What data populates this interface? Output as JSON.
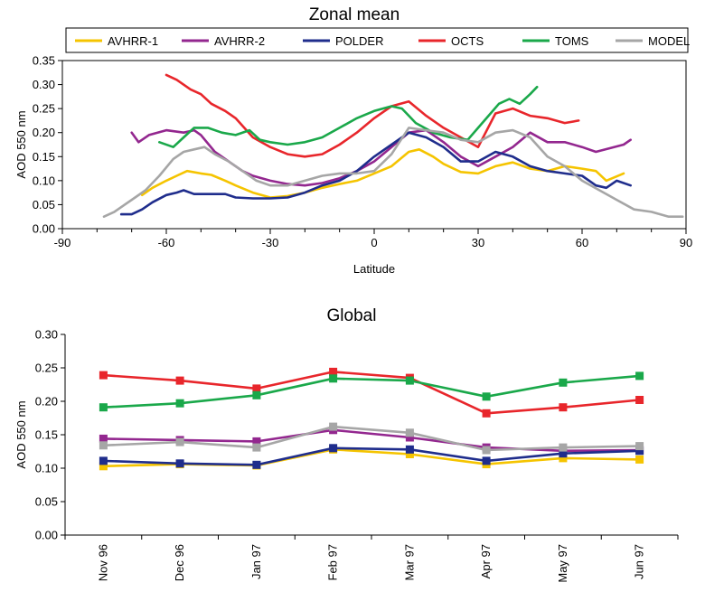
{
  "chart_data": [
    {
      "type": "line",
      "title": "Zonal mean",
      "xlabel": "Latitude",
      "ylabel": "AOD 550 nm",
      "xlim": [
        -90,
        90
      ],
      "ylim": [
        0,
        0.35
      ],
      "xticks": [
        "-90",
        "-60",
        "-30",
        "0",
        "30",
        "60",
        "90"
      ],
      "yticks": [
        "0.00",
        "0.05",
        "0.10",
        "0.15",
        "0.20",
        "0.25",
        "0.30",
        "0.35"
      ],
      "legend_position": "top",
      "series": [
        {
          "name": "AVHRR-1",
          "color": "#f5c400",
          "points": [
            [
              -67,
              0.07
            ],
            [
              -64,
              0.085
            ],
            [
              -60,
              0.1
            ],
            [
              -57,
              0.11
            ],
            [
              -54,
              0.12
            ],
            [
              -50,
              0.115
            ],
            [
              -47,
              0.112
            ],
            [
              -43,
              0.1
            ],
            [
              -40,
              0.09
            ],
            [
              -35,
              0.075
            ],
            [
              -30,
              0.065
            ],
            [
              -25,
              0.068
            ],
            [
              -20,
              0.075
            ],
            [
              -15,
              0.085
            ],
            [
              -10,
              0.093
            ],
            [
              -5,
              0.1
            ],
            [
              0,
              0.115
            ],
            [
              5,
              0.13
            ],
            [
              10,
              0.16
            ],
            [
              13,
              0.165
            ],
            [
              17,
              0.15
            ],
            [
              20,
              0.135
            ],
            [
              25,
              0.118
            ],
            [
              30,
              0.115
            ],
            [
              35,
              0.13
            ],
            [
              40,
              0.138
            ],
            [
              45,
              0.125
            ],
            [
              50,
              0.12
            ],
            [
              55,
              0.13
            ],
            [
              60,
              0.125
            ],
            [
              64,
              0.12
            ],
            [
              67,
              0.1
            ],
            [
              72,
              0.115
            ]
          ]
        },
        {
          "name": "AVHRR-2",
          "color": "#93278f",
          "points": [
            [
              -70,
              0.2
            ],
            [
              -68,
              0.18
            ],
            [
              -65,
              0.195
            ],
            [
              -60,
              0.205
            ],
            [
              -55,
              0.2
            ],
            [
              -52,
              0.205
            ],
            [
              -50,
              0.195
            ],
            [
              -46,
              0.16
            ],
            [
              -42,
              0.14
            ],
            [
              -38,
              0.12
            ],
            [
              -35,
              0.11
            ],
            [
              -30,
              0.1
            ],
            [
              -25,
              0.093
            ],
            [
              -20,
              0.09
            ],
            [
              -15,
              0.095
            ],
            [
              -10,
              0.105
            ],
            [
              -5,
              0.12
            ],
            [
              0,
              0.14
            ],
            [
              5,
              0.17
            ],
            [
              10,
              0.2
            ],
            [
              15,
              0.205
            ],
            [
              20,
              0.18
            ],
            [
              25,
              0.15
            ],
            [
              30,
              0.13
            ],
            [
              35,
              0.15
            ],
            [
              40,
              0.17
            ],
            [
              45,
              0.2
            ],
            [
              50,
              0.18
            ],
            [
              55,
              0.18
            ],
            [
              60,
              0.17
            ],
            [
              64,
              0.16
            ],
            [
              72,
              0.175
            ],
            [
              74,
              0.185
            ]
          ]
        },
        {
          "name": "POLDER",
          "color": "#1f2d8c",
          "points": [
            [
              -73,
              0.03
            ],
            [
              -70,
              0.03
            ],
            [
              -67,
              0.04
            ],
            [
              -64,
              0.055
            ],
            [
              -60,
              0.07
            ],
            [
              -57,
              0.075
            ],
            [
              -55,
              0.08
            ],
            [
              -52,
              0.072
            ],
            [
              -48,
              0.072
            ],
            [
              -43,
              0.072
            ],
            [
              -40,
              0.065
            ],
            [
              -35,
              0.063
            ],
            [
              -30,
              0.063
            ],
            [
              -25,
              0.065
            ],
            [
              -20,
              0.075
            ],
            [
              -15,
              0.09
            ],
            [
              -10,
              0.1
            ],
            [
              -5,
              0.12
            ],
            [
              0,
              0.15
            ],
            [
              5,
              0.175
            ],
            [
              10,
              0.2
            ],
            [
              15,
              0.19
            ],
            [
              20,
              0.17
            ],
            [
              25,
              0.14
            ],
            [
              30,
              0.14
            ],
            [
              35,
              0.16
            ],
            [
              40,
              0.15
            ],
            [
              45,
              0.13
            ],
            [
              50,
              0.12
            ],
            [
              55,
              0.115
            ],
            [
              60,
              0.11
            ],
            [
              64,
              0.09
            ],
            [
              67,
              0.085
            ],
            [
              70,
              0.1
            ],
            [
              74,
              0.09
            ]
          ]
        },
        {
          "name": "OCTS",
          "color": "#e8262b",
          "points": [
            [
              -60,
              0.32
            ],
            [
              -57,
              0.31
            ],
            [
              -53,
              0.29
            ],
            [
              -50,
              0.28
            ],
            [
              -47,
              0.26
            ],
            [
              -43,
              0.245
            ],
            [
              -40,
              0.23
            ],
            [
              -35,
              0.19
            ],
            [
              -30,
              0.17
            ],
            [
              -25,
              0.155
            ],
            [
              -20,
              0.15
            ],
            [
              -15,
              0.155
            ],
            [
              -10,
              0.175
            ],
            [
              -5,
              0.2
            ],
            [
              0,
              0.23
            ],
            [
              5,
              0.255
            ],
            [
              10,
              0.265
            ],
            [
              15,
              0.235
            ],
            [
              20,
              0.21
            ],
            [
              25,
              0.19
            ],
            [
              30,
              0.17
            ],
            [
              35,
              0.24
            ],
            [
              40,
              0.25
            ],
            [
              45,
              0.235
            ],
            [
              50,
              0.23
            ],
            [
              55,
              0.22
            ],
            [
              59,
              0.225
            ]
          ]
        },
        {
          "name": "TOMS",
          "color": "#1aa84a",
          "points": [
            [
              -62,
              0.18
            ],
            [
              -58,
              0.17
            ],
            [
              -55,
              0.19
            ],
            [
              -52,
              0.21
            ],
            [
              -48,
              0.21
            ],
            [
              -44,
              0.2
            ],
            [
              -40,
              0.195
            ],
            [
              -36,
              0.205
            ],
            [
              -33,
              0.185
            ],
            [
              -30,
              0.18
            ],
            [
              -25,
              0.175
            ],
            [
              -20,
              0.18
            ],
            [
              -15,
              0.19
            ],
            [
              -10,
              0.21
            ],
            [
              -5,
              0.23
            ],
            [
              0,
              0.245
            ],
            [
              5,
              0.255
            ],
            [
              8,
              0.25
            ],
            [
              12,
              0.22
            ],
            [
              17,
              0.2
            ],
            [
              22,
              0.19
            ],
            [
              27,
              0.185
            ],
            [
              30,
              0.21
            ],
            [
              33,
              0.235
            ],
            [
              36,
              0.26
            ],
            [
              39,
              0.27
            ],
            [
              42,
              0.26
            ],
            [
              45,
              0.28
            ],
            [
              47,
              0.295
            ]
          ]
        },
        {
          "name": "MODEL",
          "color": "#a6a6a6",
          "points": [
            [
              -78,
              0.025
            ],
            [
              -75,
              0.035
            ],
            [
              -72,
              0.05
            ],
            [
              -69,
              0.065
            ],
            [
              -66,
              0.08
            ],
            [
              -62,
              0.11
            ],
            [
              -58,
              0.145
            ],
            [
              -55,
              0.16
            ],
            [
              -52,
              0.165
            ],
            [
              -49,
              0.17
            ],
            [
              -46,
              0.155
            ],
            [
              -42,
              0.14
            ],
            [
              -38,
              0.12
            ],
            [
              -34,
              0.1
            ],
            [
              -30,
              0.09
            ],
            [
              -25,
              0.09
            ],
            [
              -20,
              0.1
            ],
            [
              -15,
              0.11
            ],
            [
              -10,
              0.115
            ],
            [
              -5,
              0.115
            ],
            [
              0,
              0.12
            ],
            [
              5,
              0.155
            ],
            [
              10,
              0.21
            ],
            [
              15,
              0.205
            ],
            [
              20,
              0.2
            ],
            [
              25,
              0.185
            ],
            [
              30,
              0.18
            ],
            [
              35,
              0.2
            ],
            [
              40,
              0.205
            ],
            [
              45,
              0.19
            ],
            [
              50,
              0.15
            ],
            [
              55,
              0.13
            ],
            [
              60,
              0.1
            ],
            [
              65,
              0.08
            ],
            [
              70,
              0.06
            ],
            [
              75,
              0.04
            ],
            [
              80,
              0.035
            ],
            [
              85,
              0.025
            ],
            [
              89,
              0.025
            ]
          ]
        }
      ]
    },
    {
      "type": "line",
      "title": "Global",
      "xlabel": "",
      "ylabel": "AOD 550 nm",
      "ylim": [
        0,
        0.3
      ],
      "yticks": [
        "0.00",
        "0.05",
        "0.10",
        "0.15",
        "0.20",
        "0.25",
        "0.30"
      ],
      "categories": [
        "Nov 96",
        "Dec 96",
        "Jan 97",
        "Feb 97",
        "Mar 97",
        "Apr 97",
        "May 97",
        "Jun 97"
      ],
      "series": [
        {
          "name": "AVHRR-1",
          "color": "#f5c400",
          "values": [
            0.103,
            0.106,
            0.104,
            0.128,
            0.121,
            0.106,
            0.115,
            0.113
          ]
        },
        {
          "name": "AVHRR-2",
          "color": "#93278f",
          "values": [
            0.144,
            0.142,
            0.14,
            0.157,
            0.146,
            0.131,
            0.126,
            0.127
          ]
        },
        {
          "name": "POLDER",
          "color": "#1f2d8c",
          "values": [
            0.111,
            0.107,
            0.105,
            0.13,
            0.128,
            0.111,
            0.122,
            0.126
          ]
        },
        {
          "name": "OCTS",
          "color": "#e8262b",
          "values": [
            0.239,
            0.231,
            0.219,
            0.244,
            0.235,
            0.182,
            0.191,
            0.202
          ]
        },
        {
          "name": "TOMS",
          "color": "#1aa84a",
          "values": [
            0.191,
            0.197,
            0.209,
            0.234,
            0.231,
            0.207,
            0.228,
            0.238
          ]
        },
        {
          "name": "MODEL",
          "color": "#a6a6a6",
          "values": [
            0.134,
            0.139,
            0.131,
            0.162,
            0.153,
            0.127,
            0.131,
            0.133
          ]
        }
      ]
    }
  ]
}
